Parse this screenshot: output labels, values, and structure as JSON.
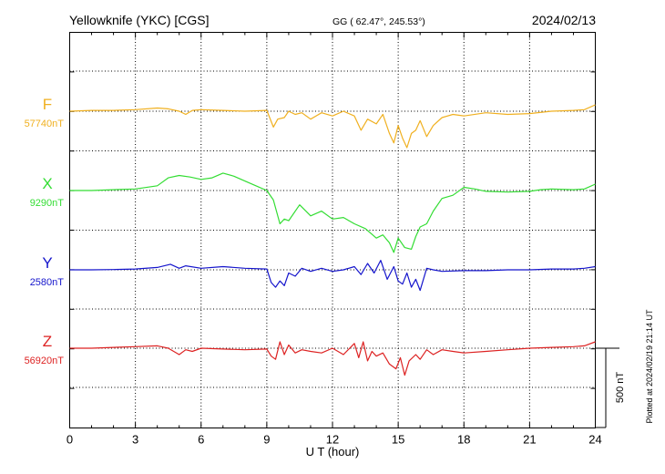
{
  "header": {
    "station": "Yellowknife (YKC)  [CGS]",
    "coords": "GG ( 62.47°, 245.53°)",
    "date": "2024/02/13"
  },
  "footer": {
    "plotted": "Plotted at 2024/02/19 21:14 UT"
  },
  "chart_data": {
    "type": "line",
    "xlabel": "U T (hour)",
    "xlim": [
      0,
      24
    ],
    "xticks": [
      0,
      3,
      6,
      9,
      12,
      15,
      18,
      21,
      24
    ],
    "grid": true,
    "scale_bar": {
      "value": 500,
      "label": "500 nT"
    },
    "series": [
      {
        "name": "F",
        "baseline_label": "57740nT",
        "baseline": 57740,
        "color": "#f0b020",
        "x": [
          0,
          1,
          2,
          3,
          4,
          4.5,
          5,
          5.3,
          5.6,
          6,
          7,
          8,
          9,
          9.3,
          9.5,
          9.8,
          10,
          10.3,
          10.6,
          11,
          11.5,
          12,
          12.5,
          13,
          13.3,
          13.6,
          14,
          14.3,
          14.6,
          14.8,
          15,
          15.2,
          15.4,
          15.6,
          15.8,
          16,
          16.3,
          16.6,
          17,
          17.5,
          18,
          19,
          20,
          21,
          22,
          23,
          23.5,
          24
        ],
        "y": [
          57740,
          57745,
          57745,
          57750,
          57760,
          57755,
          57740,
          57720,
          57745,
          57750,
          57745,
          57740,
          57745,
          57640,
          57690,
          57700,
          57740,
          57720,
          57730,
          57690,
          57730,
          57710,
          57740,
          57710,
          57620,
          57690,
          57660,
          57720,
          57600,
          57540,
          57650,
          57570,
          57510,
          57600,
          57620,
          57680,
          57580,
          57650,
          57700,
          57720,
          57710,
          57730,
          57720,
          57725,
          57740,
          57745,
          57750,
          57780
        ]
      },
      {
        "name": "X",
        "baseline_label": "9290nT",
        "baseline": 9290,
        "color": "#33dd33",
        "x": [
          0,
          1,
          2,
          3,
          4,
          4.5,
          5,
          5.5,
          6,
          6.5,
          7,
          7.5,
          8,
          8.5,
          9,
          9.3,
          9.6,
          9.8,
          10,
          10.5,
          11,
          11.5,
          12,
          12.5,
          13,
          13.5,
          14,
          14.3,
          14.6,
          14.8,
          15,
          15.3,
          15.6,
          15.8,
          16,
          16.3,
          16.6,
          17,
          17.5,
          18,
          18.5,
          19,
          20,
          21,
          21.5,
          22,
          23,
          23.5,
          24
        ],
        "y": [
          9290,
          9290,
          9295,
          9300,
          9320,
          9370,
          9385,
          9375,
          9360,
          9370,
          9400,
          9380,
          9350,
          9320,
          9290,
          9230,
          9080,
          9110,
          9100,
          9200,
          9130,
          9160,
          9110,
          9120,
          9080,
          9050,
          8990,
          9010,
          8960,
          8900,
          8990,
          8930,
          8920,
          9000,
          9060,
          9080,
          9160,
          9240,
          9260,
          9310,
          9300,
          9285,
          9280,
          9285,
          9295,
          9300,
          9295,
          9300,
          9330
        ]
      },
      {
        "name": "Y",
        "baseline_label": "2580nT",
        "baseline": 2580,
        "color": "#1515cc",
        "x": [
          0,
          1,
          2,
          3,
          4,
          4.6,
          5,
          5.3,
          6,
          7,
          8,
          9,
          9.2,
          9.4,
          9.6,
          9.8,
          10,
          10.3,
          10.6,
          11,
          11.5,
          12,
          12.5,
          13,
          13.3,
          13.6,
          13.9,
          14.2,
          14.5,
          14.8,
          15,
          15.2,
          15.4,
          15.6,
          15.8,
          16,
          16.3,
          16.6,
          17,
          18,
          19,
          20,
          21,
          22,
          23,
          23.5,
          24
        ],
        "y": [
          2580,
          2580,
          2582,
          2585,
          2595,
          2615,
          2590,
          2605,
          2590,
          2600,
          2590,
          2585,
          2500,
          2470,
          2510,
          2480,
          2560,
          2540,
          2590,
          2570,
          2590,
          2570,
          2580,
          2600,
          2550,
          2620,
          2560,
          2640,
          2520,
          2600,
          2510,
          2490,
          2560,
          2470,
          2520,
          2450,
          2590,
          2580,
          2570,
          2575,
          2575,
          2580,
          2580,
          2585,
          2585,
          2590,
          2600
        ]
      },
      {
        "name": "Z",
        "baseline_label": "56920nT",
        "baseline": 56920,
        "color": "#dd2222",
        "x": [
          0,
          1,
          2,
          3,
          4,
          4.5,
          5,
          5.3,
          5.6,
          6,
          7,
          8,
          9,
          9.2,
          9.4,
          9.6,
          9.8,
          10,
          10.3,
          10.6,
          11,
          11.5,
          12,
          12.5,
          13,
          13.2,
          13.4,
          13.6,
          13.8,
          14,
          14.3,
          14.6,
          14.9,
          15.1,
          15.3,
          15.5,
          15.8,
          16,
          16.3,
          16.6,
          17,
          17.5,
          18,
          19,
          20,
          21,
          22,
          23,
          23.5,
          24
        ],
        "y": [
          56920,
          56920,
          56925,
          56930,
          56935,
          56920,
          56880,
          56910,
          56900,
          56920,
          56915,
          56910,
          56915,
          56870,
          56850,
          56960,
          56880,
          56940,
          56890,
          56910,
          56900,
          56890,
          56920,
          56880,
          56950,
          56860,
          56960,
          56840,
          56900,
          56870,
          56890,
          56820,
          56790,
          56860,
          56750,
          56840,
          56880,
          56850,
          56910,
          56880,
          56910,
          56900,
          56890,
          56900,
          56910,
          56920,
          56925,
          56930,
          56935,
          56960
        ]
      }
    ]
  }
}
